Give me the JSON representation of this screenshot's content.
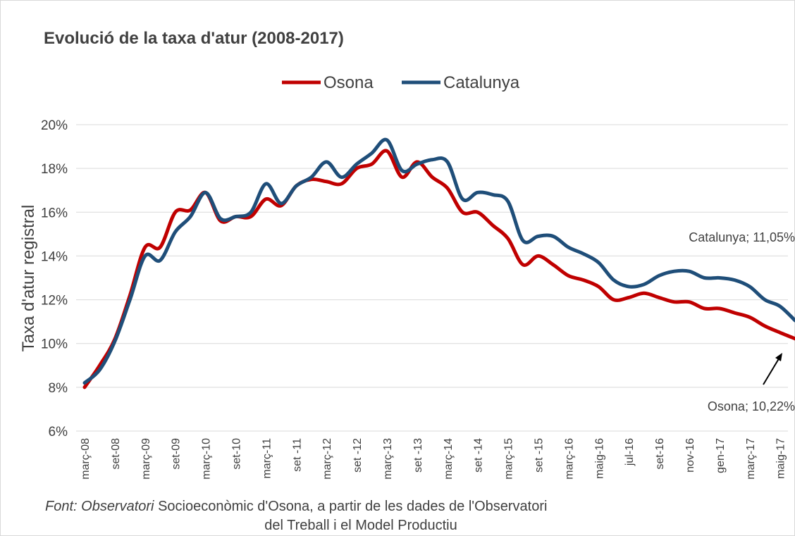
{
  "chart_data": {
    "type": "line",
    "title": "Evolució de la taxa d'atur (2008-2017)",
    "y_label": "Taxa d'atur registral",
    "categories": [
      "març-08",
      null,
      "set-08",
      null,
      "març-09",
      null,
      "set-09",
      null,
      "març-10",
      null,
      "set-10",
      null,
      "març-11",
      null,
      "set -11",
      null,
      "març-12",
      null,
      "set -12",
      null,
      "març-13",
      null,
      "set -13",
      null,
      "març-14",
      null,
      "set -14",
      null,
      "març-15",
      null,
      "set -15",
      null,
      "març-16",
      null,
      "maig-16",
      null,
      "jul-16",
      null,
      "set-16",
      null,
      "nov-16",
      null,
      "gen-17",
      null,
      "març-17",
      null,
      "maig-17",
      null
    ],
    "series": [
      {
        "name": "Osona",
        "color": "#c00000",
        "values": [
          8.0,
          9.0,
          10.2,
          12.2,
          14.4,
          14.4,
          16.0,
          16.1,
          16.9,
          15.6,
          15.8,
          15.8,
          16.6,
          16.3,
          17.2,
          17.5,
          17.4,
          17.3,
          18.0,
          18.2,
          18.8,
          17.6,
          18.3,
          17.6,
          17.1,
          16.0,
          16.0,
          15.4,
          14.8,
          13.6,
          14.0,
          13.6,
          13.1,
          12.9,
          12.6,
          12.0,
          12.1,
          12.3,
          12.1,
          11.9,
          11.9,
          11.6,
          11.6,
          11.4,
          11.2,
          10.8,
          10.5,
          10.22
        ]
      },
      {
        "name": "Catalunya",
        "color": "#1f4e79",
        "values": [
          8.2,
          8.8,
          10.1,
          12.0,
          14.0,
          13.8,
          15.1,
          15.8,
          16.9,
          15.7,
          15.8,
          16.0,
          17.3,
          16.4,
          17.2,
          17.6,
          18.3,
          17.6,
          18.2,
          18.7,
          19.3,
          17.9,
          18.2,
          18.4,
          18.3,
          16.6,
          16.9,
          16.8,
          16.5,
          14.7,
          14.9,
          14.9,
          14.4,
          14.1,
          13.7,
          12.9,
          12.6,
          12.7,
          13.1,
          13.3,
          13.3,
          13.0,
          13.0,
          12.9,
          12.6,
          12.0,
          11.7,
          11.05
        ]
      }
    ],
    "ylim": [
      6,
      20
    ],
    "yticks": [
      {
        "value": 6,
        "label": "6%"
      },
      {
        "value": 8,
        "label": "8%"
      },
      {
        "value": 10,
        "label": "10%"
      },
      {
        "value": 12,
        "label": "12%"
      },
      {
        "value": 14,
        "label": "14%"
      },
      {
        "value": 16,
        "label": "16%"
      },
      {
        "value": 18,
        "label": "18%"
      },
      {
        "value": 20,
        "label": "20%"
      }
    ],
    "grid": true,
    "legend": "top",
    "annotations": [
      {
        "text": "Catalunya; 11,05%"
      },
      {
        "text": "Osona; 10,22%"
      }
    ],
    "source": {
      "italic": "Font: Observatori",
      "rest": " Socioeconòmic d'Osona, a partir de les dades de l'Observatori",
      "line2": "del Treball i el Model Productiu"
    }
  }
}
